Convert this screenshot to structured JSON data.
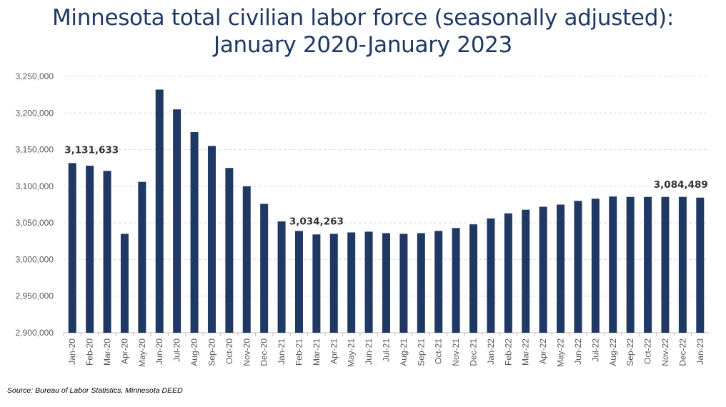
{
  "title_lines": [
    "Minnesota total civilian labor force (seasonally adjusted):",
    "January 2020-January 2023"
  ],
  "source": "Source: Bureau of Labor Statistics, Minnesota DEED",
  "colors": {
    "bar": "#1f3864",
    "title": "#1f3864",
    "grid": "#d9d9d9"
  },
  "chart_data": {
    "type": "bar",
    "title": "Minnesota total civilian labor force (seasonally adjusted): January 2020-January 2023",
    "xlabel": "",
    "ylabel": "",
    "ylim": [
      2900000,
      3250000
    ],
    "yticks": [
      2900000,
      2950000,
      3000000,
      3050000,
      3100000,
      3150000,
      3200000,
      3250000
    ],
    "ytick_labels": [
      "2,900,000",
      "2,950,000",
      "3,000,000",
      "3,050,000",
      "3,100,000",
      "3,150,000",
      "3,200,000",
      "3,250,000"
    ],
    "grid": true,
    "categories": [
      "Jan-20",
      "Feb-20",
      "Mar-20",
      "Apr-20",
      "May-20",
      "Jun-20",
      "Jul-20",
      "Aug-20",
      "Sep-20",
      "Oct-20",
      "Nov-20",
      "Dec-20",
      "Jan-21",
      "Feb-21",
      "Mar-21",
      "Apr-21",
      "May-21",
      "Jun-21",
      "Jul-21",
      "Aug-21",
      "Sep-21",
      "Oct-21",
      "Nov-21",
      "Dec-21",
      "Jan-22",
      "Feb-22",
      "Mar-22",
      "Apr-22",
      "May-22",
      "Jun-22",
      "Jul-22",
      "Aug-22",
      "Sep-22",
      "Oct-22",
      "Nov-22",
      "Dec-22",
      "Jan-23"
    ],
    "values": [
      3131633,
      3128000,
      3121000,
      3035000,
      3106000,
      3232000,
      3205000,
      3174000,
      3155000,
      3125000,
      3100000,
      3076000,
      3052000,
      3039000,
      3034263,
      3035000,
      3037000,
      3038000,
      3036000,
      3035000,
      3036000,
      3039000,
      3043000,
      3048000,
      3056000,
      3063000,
      3068000,
      3072000,
      3075000,
      3080000,
      3083000,
      3086000,
      3085500,
      3085500,
      3085500,
      3085500,
      3084489
    ],
    "annotations": [
      {
        "index": 0,
        "text": "3,131,633"
      },
      {
        "index": 14,
        "text": "3,034,263"
      },
      {
        "index": 36,
        "text": "3,084,489"
      }
    ]
  }
}
